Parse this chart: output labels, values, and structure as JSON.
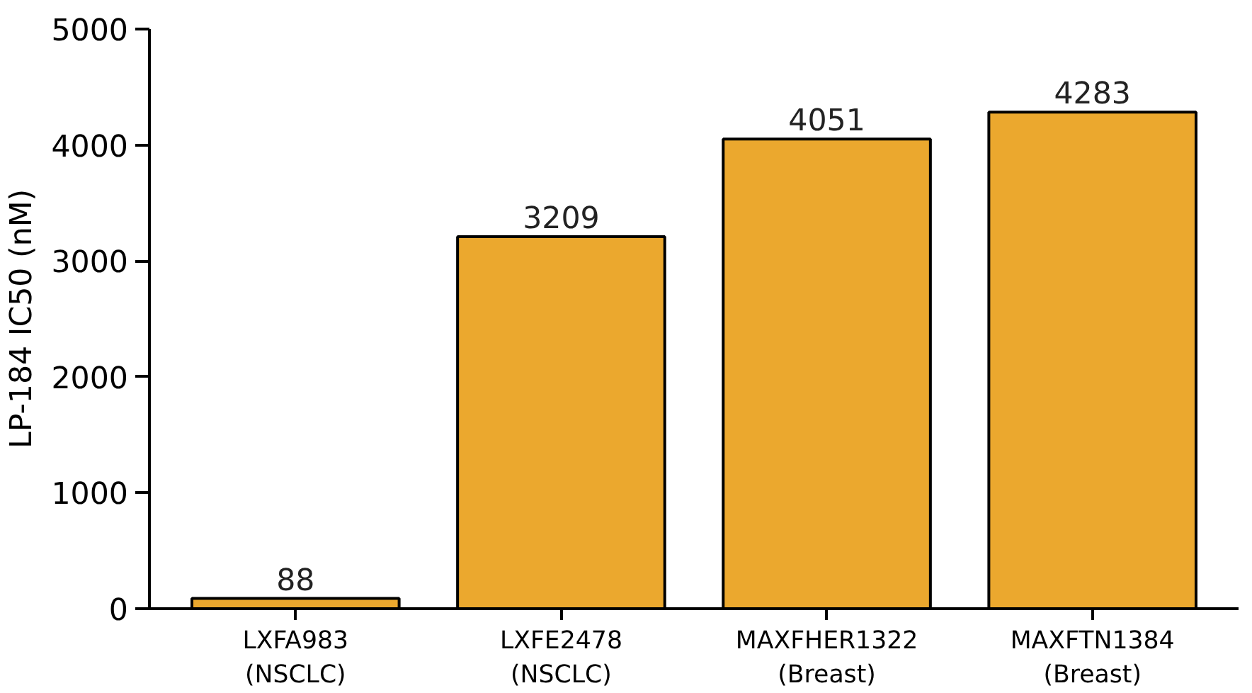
{
  "chart_data": {
    "type": "bar",
    "ylabel": "LP-184 IC50 (nM)",
    "categories": [
      "LXFA983\n(NSCLC)",
      "LXFE2478\n(NSCLC)",
      "MAXFHER1322\n(Breast)",
      "MAXFTN1384\n(Breast)"
    ],
    "values": [
      88,
      3209,
      4051,
      4283
    ],
    "color": "#eba82e",
    "ylim": [
      0,
      5000
    ],
    "yticks": [
      0,
      1000,
      2000,
      3000,
      4000,
      5000
    ],
    "data_labels": true,
    "grid": false
  }
}
